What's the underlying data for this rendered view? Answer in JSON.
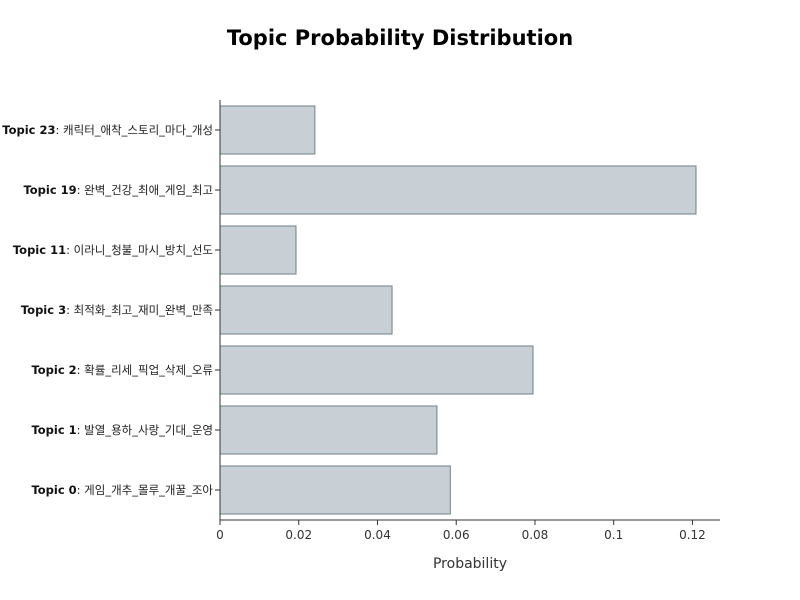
{
  "chart_data": {
    "type": "bar",
    "orientation": "horizontal",
    "title": "Topic Probability Distribution",
    "xlabel": "Probability",
    "ylabel": "",
    "xlim": [
      0,
      0.127
    ],
    "x_ticks": [
      0,
      0.02,
      0.04,
      0.06,
      0.08,
      0.1,
      0.12
    ],
    "x_tick_labels": [
      "0",
      "0.02",
      "0.04",
      "0.06",
      "0.08",
      "0.1",
      "0.12"
    ],
    "grid": false,
    "categories": [
      {
        "name": "Topic 23",
        "keywords": ": 캐릭터_애착_스토리_마다_개성"
      },
      {
        "name": "Topic 19",
        "keywords": ": 완벽_건강_최애_게임_최고"
      },
      {
        "name": "Topic 11",
        "keywords": ": 이라니_청불_마시_방치_선도"
      },
      {
        "name": "Topic 3",
        "keywords": ": 최적화_최고_재미_완벽_만족"
      },
      {
        "name": "Topic 2",
        "keywords": ": 확률_리세_픽업_삭제_오류"
      },
      {
        "name": "Topic 1",
        "keywords": ": 발열_용하_사랑_기대_운영"
      },
      {
        "name": "Topic 0",
        "keywords": ": 게임_개추_몰루_개꿀_조아"
      }
    ],
    "values": [
      0.0241,
      0.1209,
      0.0193,
      0.0437,
      0.0795,
      0.0551,
      0.0585
    ],
    "colors": {
      "bar_fill": "#c8d0d6",
      "bar_stroke": "#6d8188",
      "axis": "#333333"
    }
  }
}
